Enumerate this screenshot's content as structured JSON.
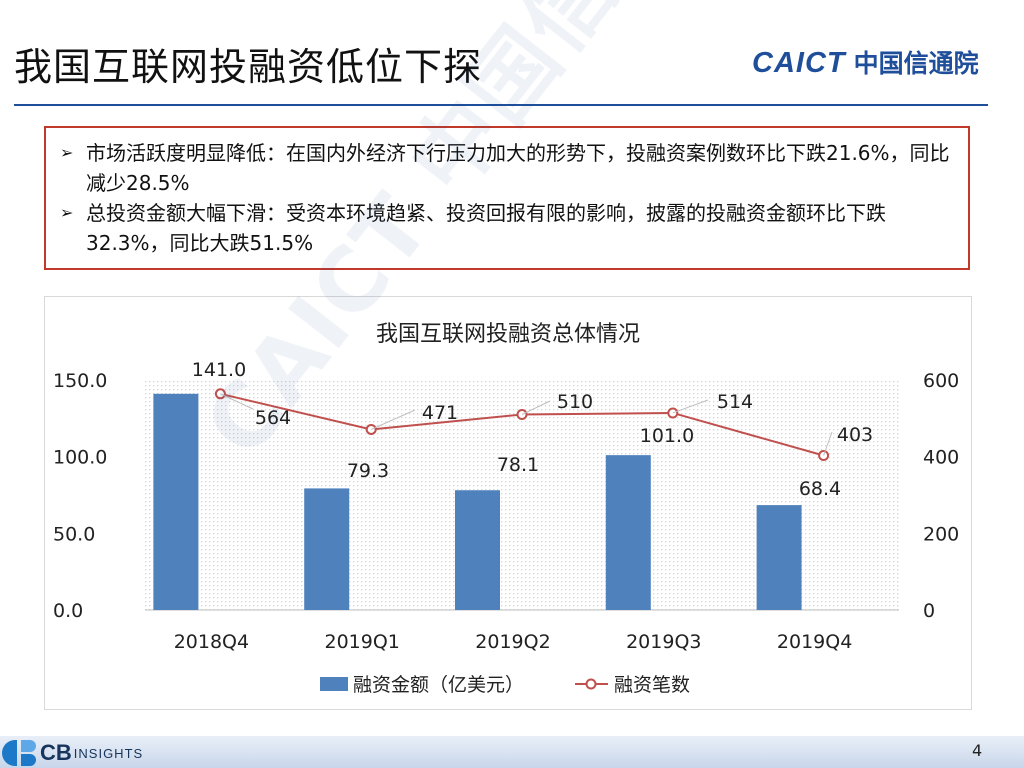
{
  "slide": {
    "title": "我国互联网投融资低位下探",
    "logo_en": "CAICT",
    "logo_cn": "中国信通院",
    "watermark": "CAICT 中国信通院",
    "page_number": "4",
    "footer_logo_main": "CB",
    "footer_logo_sub": "INSIGHTS"
  },
  "summary": {
    "bullets": [
      "市场活跃度明显降低：在国内外经济下行压力加大的形势下，投融资案例数环比下跌21.6%，同比减少28.5%",
      "总投资金额大幅下滑：受资本环境趋紧、投资回报有限的影响，披露的投融资金额环比下跌32.3%，同比大跌51.5%"
    ],
    "bullet_marker": "➢"
  },
  "chart_data": {
    "type": "bar",
    "title": "我国互联网投融资总体情况",
    "categories": [
      "2018Q4",
      "2019Q1",
      "2019Q2",
      "2019Q3",
      "2019Q4"
    ],
    "series": [
      {
        "name": "融资金额（亿美元）",
        "type": "bar",
        "axis": "left",
        "values": [
          141.0,
          79.3,
          78.1,
          101.0,
          68.4
        ],
        "color": "#4f81bd"
      },
      {
        "name": "融资笔数",
        "type": "line",
        "axis": "right",
        "values": [
          564,
          471,
          510,
          514,
          403
        ],
        "color": "#c0504d"
      }
    ],
    "y_left": {
      "min": 0,
      "max": 150,
      "ticks": [
        "0.0",
        "50.0",
        "100.0",
        "150.0"
      ]
    },
    "y_right": {
      "min": 0,
      "max": 600,
      "ticks": [
        "0",
        "200",
        "400",
        "600"
      ]
    },
    "bar_labels": [
      "141.0",
      "79.3",
      "78.1",
      "101.0",
      "68.4"
    ],
    "line_labels": [
      "564",
      "471",
      "510",
      "514",
      "403"
    ],
    "legend_position": "bottom",
    "grid": false
  }
}
